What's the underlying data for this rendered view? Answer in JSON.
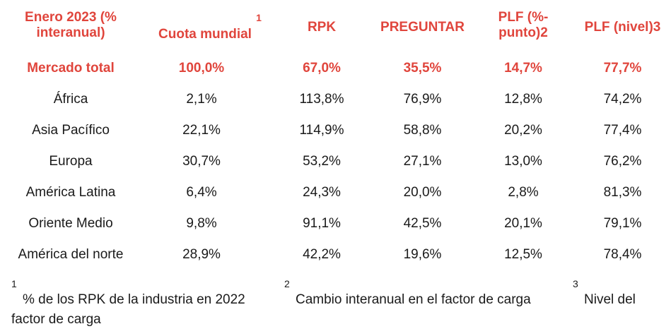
{
  "header": {
    "col0_line1": "Enero 2023 (%",
    "col0_line2": "interanual)",
    "col1_sup": "1",
    "col1": "Cuota mundial",
    "col2": "RPK",
    "col3": "PREGUNTAR",
    "col4_line1": "PLF (%-",
    "col4_line2": "punto)2",
    "col5": "PLF (nivel)3"
  },
  "total_row": {
    "region": "Mercado total",
    "share": "100,0%",
    "rpk": "67,0%",
    "ask": "35,5%",
    "plf_pt": "14,7%",
    "plf_level": "77,7%"
  },
  "rows": [
    {
      "region": "África",
      "share": "2,1%",
      "rpk": "113,8%",
      "ask": "76,9%",
      "plf_pt": "12,8%",
      "plf_level": "74,2%"
    },
    {
      "region": "Asia Pacífico",
      "share": "22,1%",
      "rpk": "114,9%",
      "ask": "58,8%",
      "plf_pt": "20,2%",
      "plf_level": "77,4%"
    },
    {
      "region": "Europa",
      "share": "30,7%",
      "rpk": "53,2%",
      "ask": "27,1%",
      "plf_pt": "13,0%",
      "plf_level": "76,2%"
    },
    {
      "region": "América Latina",
      "share": "6,4%",
      "rpk": "24,3%",
      "ask": "20,0%",
      "plf_pt": "2,8%",
      "plf_level": "81,3%"
    },
    {
      "region": "Oriente Medio",
      "share": "9,8%",
      "rpk": "91,1%",
      "ask": "42,5%",
      "plf_pt": "20,1%",
      "plf_level": "79,1%"
    },
    {
      "region": "América del norte",
      "share": "28,9%",
      "rpk": "42,2%",
      "ask": "19,6%",
      "plf_pt": "12,5%",
      "plf_level": "78,4%"
    }
  ],
  "footnotes": {
    "n1": "1",
    "t1": "% de los RPK de la industria en 2022",
    "n2": "2",
    "t2": "Cambio interanual en el factor de carga",
    "n3": "3",
    "t3": "Nivel del",
    "t4": "factor de carga"
  },
  "colors": {
    "accent": "#e0453c",
    "text": "#1a1a1a"
  }
}
